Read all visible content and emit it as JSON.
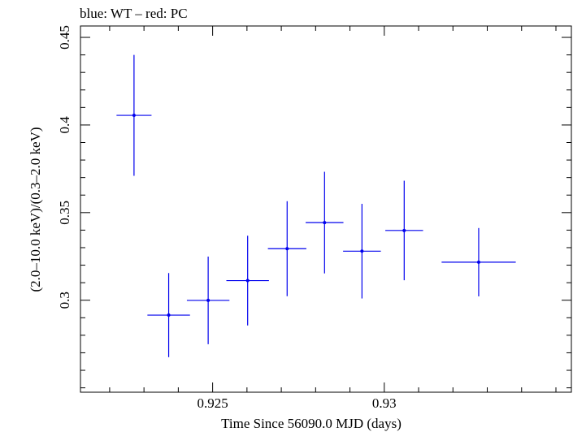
{
  "chart_data": {
    "type": "scatter",
    "title": "blue: WT – red: PC",
    "xlabel": "Time Since 56090.0 MJD (days)",
    "ylabel": "(2.0–10.0 keV)/(0.3–2.0 keV)",
    "xlim": [
      0.92115,
      0.93545
    ],
    "ylim": [
      0.2475,
      0.4565
    ],
    "x_ticks": [
      {
        "value": 0.925,
        "label": "0.925"
      },
      {
        "value": 0.93,
        "label": "0.93"
      }
    ],
    "y_ticks": [
      {
        "value": 0.3,
        "label": "0.3"
      },
      {
        "value": 0.35,
        "label": "0.35"
      },
      {
        "value": 0.4,
        "label": "0.4"
      },
      {
        "value": 0.45,
        "label": "0.45"
      }
    ],
    "grid": false,
    "series": [
      {
        "name": "WT",
        "color": "#0000ee",
        "points": [
          {
            "x": 0.92271,
            "xerr": 0.00051,
            "y": 0.4055,
            "yerr": 0.0345
          },
          {
            "x": 0.92372,
            "xerr": 0.00062,
            "y": 0.2915,
            "yerr": 0.024
          },
          {
            "x": 0.92487,
            "xerr": 0.00062,
            "y": 0.2999,
            "yerr": 0.025
          },
          {
            "x": 0.92602,
            "xerr": 0.00062,
            "y": 0.3112,
            "yerr": 0.0256
          },
          {
            "x": 0.92717,
            "xerr": 0.00056,
            "y": 0.3294,
            "yerr": 0.0271
          },
          {
            "x": 0.92826,
            "xerr": 0.00055,
            "y": 0.3443,
            "yerr": 0.029
          },
          {
            "x": 0.92935,
            "xerr": 0.00055,
            "y": 0.328,
            "yerr": 0.027
          },
          {
            "x": 0.93058,
            "xerr": 0.00055,
            "y": 0.3398,
            "yerr": 0.0284
          },
          {
            "x": 0.93275,
            "xerr": 0.00108,
            "y": 0.3217,
            "yerr": 0.0195
          }
        ]
      },
      {
        "name": "PC",
        "color": "#ee0000",
        "points": []
      }
    ]
  }
}
